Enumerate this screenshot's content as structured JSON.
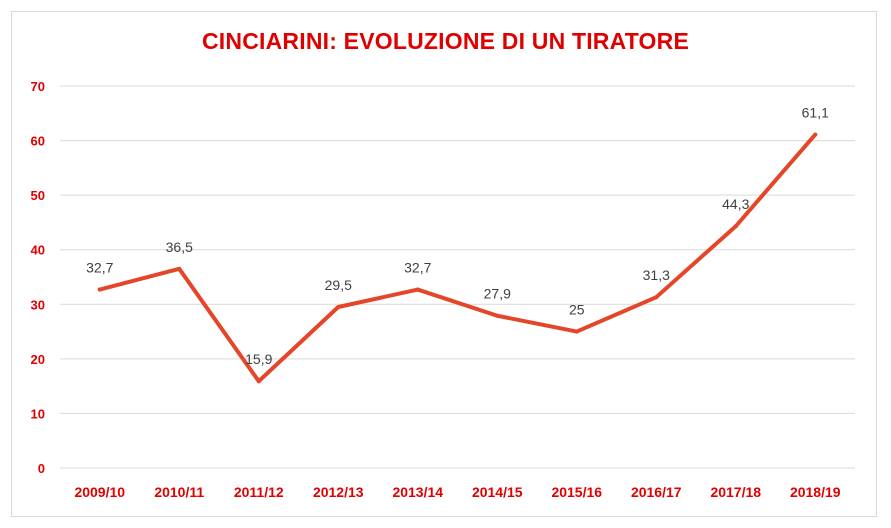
{
  "chart_data": {
    "type": "line",
    "title": "CINCIARINI: EVOLUZIONE DI UN TIRATORE",
    "categories": [
      "2009/10",
      "2010/11",
      "2011/12",
      "2012/13",
      "2013/14",
      "2014/15",
      "2015/16",
      "2016/17",
      "2017/18",
      "2018/19"
    ],
    "series": [
      {
        "values": [
          32.7,
          36.5,
          15.9,
          29.5,
          32.7,
          27.9,
          25,
          31.3,
          44.3,
          61.1
        ],
        "data_labels": [
          "32,7",
          "36,5",
          "15,9",
          "29,5",
          "32,7",
          "27,9",
          "25",
          "31,3",
          "44,3",
          "61,1"
        ]
      }
    ],
    "xlabel": "",
    "ylabel": "",
    "ylim": [
      0,
      70
    ],
    "yticks": [
      0,
      10,
      20,
      30,
      40,
      50,
      60,
      70
    ],
    "grid": true,
    "legend": "none"
  },
  "colors": {
    "line": "#e5462a",
    "title": "#e00000",
    "tick_labels": "#e00000",
    "grid": "#d9d9d9",
    "data_labels": "#404040",
    "border": "#d9d9d9"
  }
}
